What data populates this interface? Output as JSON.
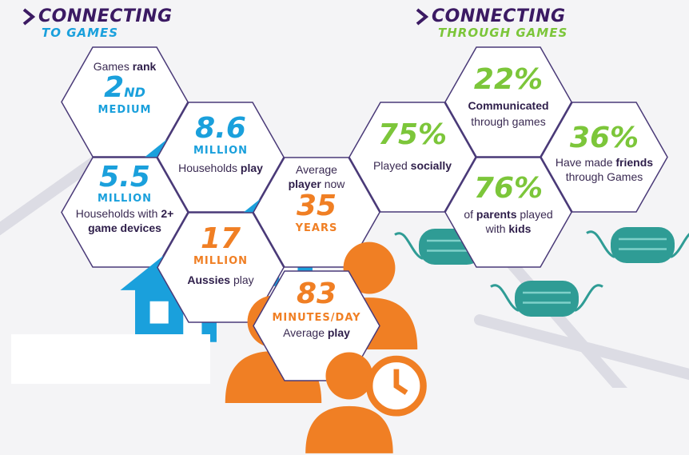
{
  "headings": {
    "left": {
      "line1": "CONNECTING",
      "line2": "TO GAMES"
    },
    "right": {
      "line1": "CONNECTING",
      "line2": "THROUGH GAMES"
    }
  },
  "colors": {
    "purple": "#3b1a63",
    "blue": "#1aa0dc",
    "orange": "#f07f24",
    "green": "#7cc63a",
    "teal": "#2f9c95",
    "hex_border": "#4a3a78"
  },
  "stats": {
    "rank": {
      "pre": "Games ",
      "bold": "rank",
      "big": "2",
      "sup": "ND",
      "unit": "MEDIUM",
      "icon": "house-icon"
    },
    "households": {
      "big": "8.6",
      "unit": "MILLION",
      "pre": "Households ",
      "bold": "play",
      "icon": "house-icon"
    },
    "devices": {
      "big": "5.5",
      "unit": "MILLION",
      "line1_pre": "Households with ",
      "line1_bold": "2+",
      "line2_bold": "game devices",
      "icon": "house-icon"
    },
    "age": {
      "line1": "Average",
      "line2_bold": "player",
      "line2_post": " now",
      "big": "35",
      "unit": "YEARS",
      "icon": "person-icon"
    },
    "aussies": {
      "big": "17",
      "unit": "MILLION",
      "bold": "Aussies",
      "post": " play",
      "icon": "person-icon"
    },
    "minutes": {
      "big": "83",
      "unit": "MINUTES/DAY",
      "pre": "Average ",
      "bold": "play",
      "icon": "person-clock-icon"
    },
    "social": {
      "big": "75%",
      "pre": "Played ",
      "bold": "socially",
      "icon": "mask-icon"
    },
    "communicated": {
      "big": "22%",
      "line1_bold": "Communicated",
      "line2": "through games",
      "icon": "mask-icon"
    },
    "friends": {
      "big": "36%",
      "line1_pre": "Have made ",
      "line1_bold": "friends",
      "line2": "through Games",
      "icon": "mask-icon"
    },
    "parents": {
      "big": "76%",
      "line1_pre": "of ",
      "line1_bold": "parents",
      "line1_post": " played",
      "line2_pre": "with ",
      "line2_bold": "kids",
      "icon": "mask-icon"
    }
  }
}
